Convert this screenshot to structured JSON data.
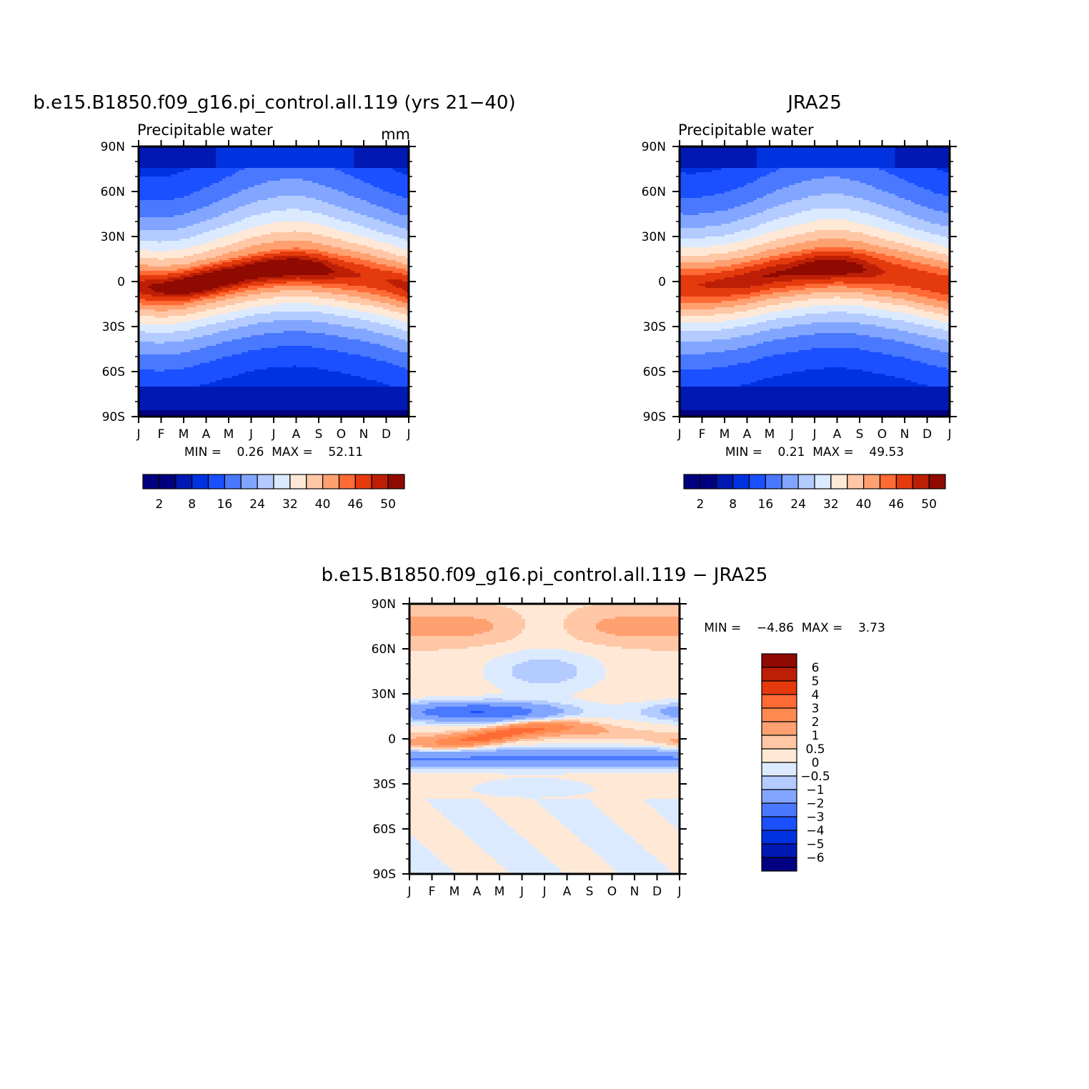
{
  "figure": {
    "month_labels": [
      "J",
      "F",
      "M",
      "A",
      "M",
      "J",
      "J",
      "A",
      "S",
      "O",
      "N",
      "D",
      "J"
    ],
    "lat_labels": [
      "90N",
      "60N",
      "30N",
      "0",
      "30S",
      "60S",
      "90S"
    ]
  },
  "chart_data": [
    {
      "id": "model",
      "type": "heatmap",
      "title": "b.e15.B1850.f09_g16.pi_control.all.119 (yrs 21−40)",
      "left_label": "Precipitable water",
      "units": "mm",
      "stats": "MIN =    0.26  MAX =    52.11",
      "min": 0.26,
      "max": 52.11,
      "xlim": [
        0,
        12
      ],
      "ylim": [
        -90,
        90
      ],
      "colorbar": {
        "levels": [
          2,
          5,
          8,
          12,
          16,
          20,
          24,
          28,
          32,
          36,
          40,
          43,
          46,
          48,
          50
        ],
        "labels": [
          "2",
          "8",
          "16",
          "24",
          "32",
          "40",
          "46",
          "50"
        ],
        "colors": [
          "#000080",
          "#0019b3",
          "#0032e0",
          "#1a50ff",
          "#4a78ff",
          "#82a6ff",
          "#b3cbff",
          "#dceaff",
          "#ffe9d6",
          "#ffc7a6",
          "#ffa070",
          "#ff6a35",
          "#e43a0d",
          "#bd1f06",
          "#8f0a00"
        ]
      },
      "field": {
        "model_key": "model",
        "itcz_center_lat": [
          -3,
          -4,
          -3,
          0,
          3,
          6,
          8,
          9,
          8,
          6,
          4,
          1,
          -3
        ],
        "peak_value": [
          47,
          49,
          51,
          52,
          51,
          50,
          50,
          50,
          49,
          47,
          46,
          46,
          47
        ],
        "itcz_halfwidth": 13,
        "decay_north": 45,
        "decay_south": 35
      }
    },
    {
      "id": "obs",
      "type": "heatmap",
      "title": "JRA25",
      "left_label": "Precipitable water",
      "units": "",
      "stats": "MIN =    0.21  MAX =    49.53",
      "min": 0.21,
      "max": 49.53,
      "xlim": [
        0,
        12
      ],
      "ylim": [
        -90,
        90
      ],
      "colorbar": {
        "levels": [
          2,
          5,
          8,
          12,
          16,
          20,
          24,
          28,
          32,
          36,
          40,
          43,
          46,
          48,
          50
        ],
        "labels": [
          "2",
          "8",
          "16",
          "24",
          "32",
          "40",
          "46",
          "50"
        ],
        "colors": [
          "#000080",
          "#0019b3",
          "#0032e0",
          "#1a50ff",
          "#4a78ff",
          "#82a6ff",
          "#b3cbff",
          "#dceaff",
          "#ffe9d6",
          "#ffc7a6",
          "#ffa070",
          "#ff6a35",
          "#e43a0d",
          "#bd1f06",
          "#8f0a00"
        ]
      },
      "field": {
        "model_key": "obs",
        "itcz_center_lat": [
          -2,
          -2,
          -1,
          1,
          4,
          6,
          8,
          9,
          8,
          6,
          4,
          1,
          -2
        ],
        "peak_value": [
          45,
          46,
          47,
          48,
          48,
          48,
          49,
          49,
          48,
          46,
          45,
          45,
          45
        ],
        "itcz_halfwidth": 14,
        "decay_north": 45,
        "decay_south": 35
      }
    },
    {
      "id": "diff",
      "type": "heatmap",
      "title": "b.e15.B1850.f09_g16.pi_control.all.119 − JRA25",
      "stats": "MIN =    −4.86  MAX =    3.73",
      "min": -4.86,
      "max": 3.73,
      "xlim": [
        0,
        12
      ],
      "ylim": [
        -90,
        90
      ],
      "colorbar": {
        "labels": [
          "6",
          "5",
          "4",
          "3",
          "2",
          "1",
          "0.5",
          "0",
          "−0.5",
          "−1",
          "−2",
          "−3",
          "−4",
          "−5",
          "−6"
        ],
        "colors": [
          "#8f0a00",
          "#bd1f06",
          "#e43a0d",
          "#ff6a35",
          "#ff8a50",
          "#ffa070",
          "#ffc7a6",
          "#ffe9d6",
          "#dceaff",
          "#b3cbff",
          "#82a6ff",
          "#4a78ff",
          "#1a50ff",
          "#0032e0",
          "#0019b3",
          "#000080"
        ]
      }
    }
  ]
}
